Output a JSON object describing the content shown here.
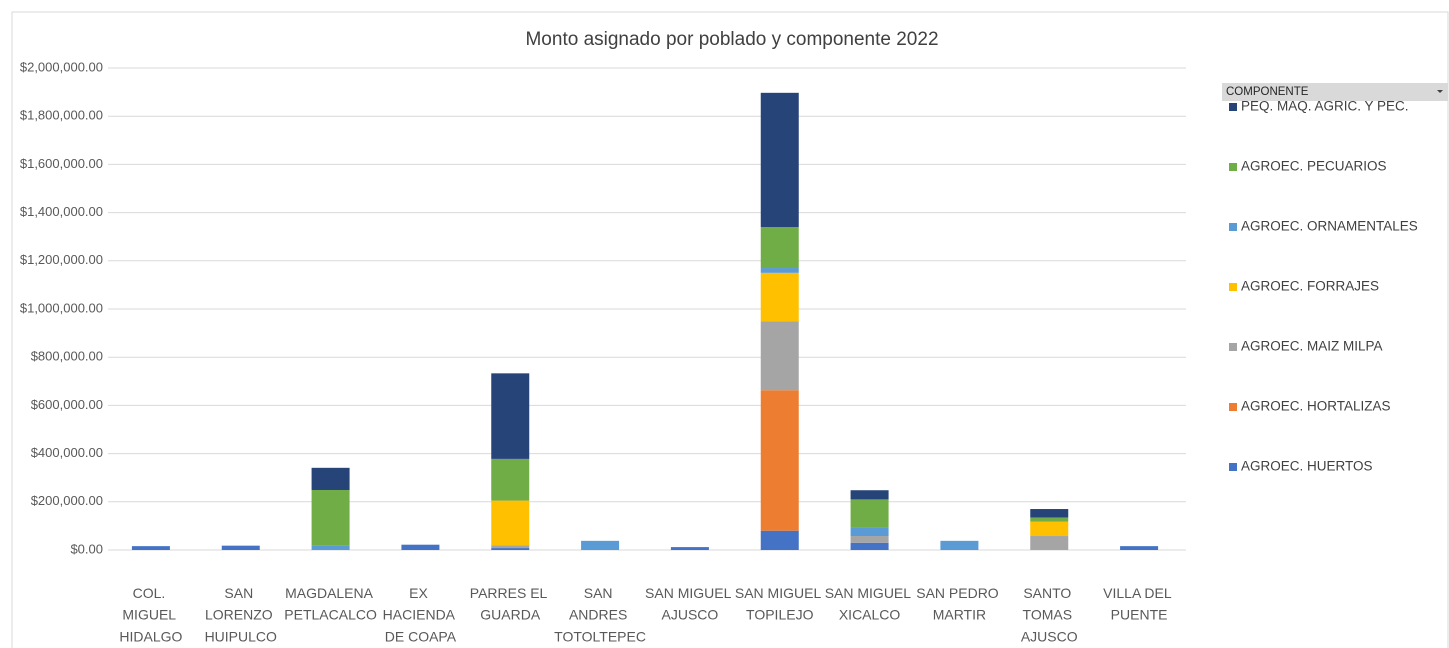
{
  "chart_data": {
    "type": "stacked_bar",
    "title": "Monto asignado por poblado y componente 2022",
    "legend_title": "COMPONENTE",
    "categories": [
      "COL. MIGUEL HIDALGO",
      "SAN LORENZO HUIPULCO",
      "MAGDALENA PETLACALCO",
      "EX HACIENDA DE COAPA",
      "PARRES EL GUARDA",
      "SAN ANDRES TOTOLTEPEC",
      "SAN MIGUEL AJUSCO",
      "SAN MIGUEL TOPILEJO",
      "SAN MIGUEL XICALCO",
      "SAN PEDRO MARTIR",
      "SANTO TOMAS AJUSCO",
      "VILLA DEL PUENTE"
    ],
    "series": [
      {
        "name": "AGROEC. HUERTOS",
        "color": "#4472c4",
        "values": [
          16000,
          18000,
          null,
          22000,
          8000,
          null,
          12000,
          80000,
          30000,
          null,
          null,
          16000
        ]
      },
      {
        "name": "AGROEC. HORTALIZAS",
        "color": "#ed7d31",
        "values": [
          null,
          null,
          null,
          null,
          null,
          null,
          null,
          583000,
          null,
          null,
          null,
          null
        ]
      },
      {
        "name": "AGROEC. MAIZ MILPA",
        "color": "#a5a5a5",
        "values": [
          null,
          null,
          null,
          null,
          12000,
          null,
          null,
          285000,
          28000,
          null,
          58000,
          null
        ]
      },
      {
        "name": "AGROEC. FORRAJES",
        "color": "#ffc000",
        "values": [
          null,
          null,
          null,
          null,
          185000,
          null,
          null,
          202000,
          null,
          null,
          60000,
          null
        ]
      },
      {
        "name": "AGROEC. ORNAMENTALES",
        "color": "#5b9bd5",
        "values": [
          null,
          null,
          20000,
          null,
          null,
          38000,
          null,
          20000,
          37000,
          38000,
          null,
          null
        ]
      },
      {
        "name": "AGROEC. PECUARIOS",
        "color": "#70ad47",
        "values": [
          null,
          null,
          229000,
          null,
          173000,
          null,
          null,
          170000,
          115000,
          null,
          17000,
          null
        ]
      },
      {
        "name": "PEQ. MAQ. AGRIC. Y PEC.",
        "color": "#264478",
        "values": [
          null,
          null,
          92000,
          null,
          355000,
          null,
          null,
          557000,
          38000,
          null,
          35000,
          null
        ]
      }
    ],
    "ylim": [
      0,
      2000000
    ],
    "yticks": [
      {
        "value": 0,
        "label": "$0.00"
      },
      {
        "value": 200000,
        "label": "$200,000.00"
      },
      {
        "value": 400000,
        "label": "$400,000.00"
      },
      {
        "value": 600000,
        "label": "$600,000.00"
      },
      {
        "value": 800000,
        "label": "$800,000.00"
      },
      {
        "value": 1000000,
        "label": "$1,000,000.00"
      },
      {
        "value": 1200000,
        "label": "$1,200,000.00"
      },
      {
        "value": 1400000,
        "label": "$1,400,000.00"
      },
      {
        "value": 1600000,
        "label": "$1,600,000.00"
      },
      {
        "value": 1800000,
        "label": "$1,800,000.00"
      },
      {
        "value": 2000000,
        "label": "$2,000,000.00"
      }
    ],
    "grid": true
  }
}
